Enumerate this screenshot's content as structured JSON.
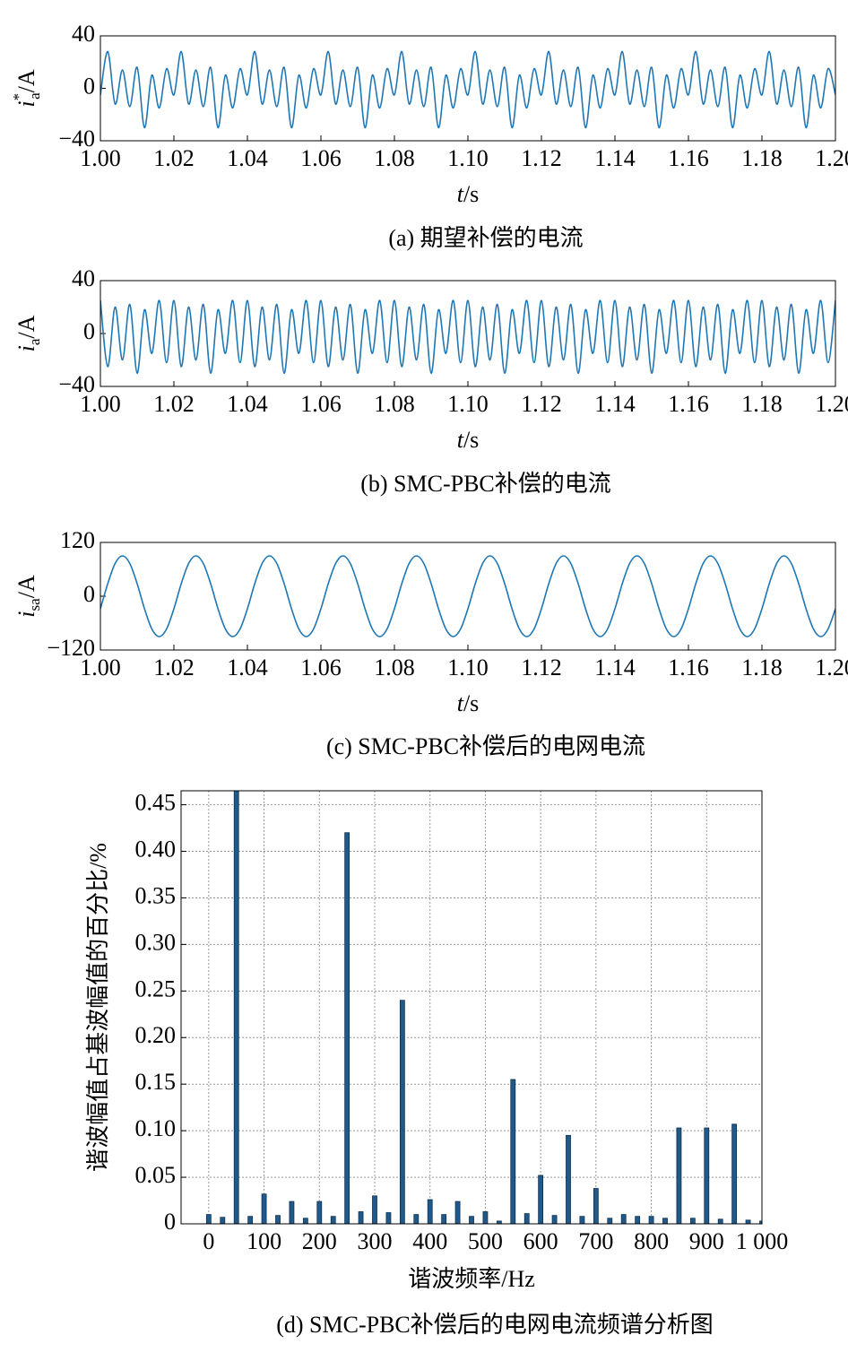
{
  "chart_data": [
    {
      "type": "line",
      "caption": "(a) 期望补偿的电流",
      "ylabel": {
        "symbol": "i",
        "superscript": "*",
        "subscript": "a",
        "unit": "/A"
      },
      "xlabel": {
        "symbol": "t",
        "unit": "/s"
      },
      "color": "#1f77b4",
      "xlim": [
        1,
        1.2
      ],
      "ylim": [
        -40,
        40
      ],
      "xticks": [
        {
          "value": 1,
          "label": "1.00"
        },
        1.02,
        1.04,
        1.06,
        1.08,
        {
          "value": 1.1,
          "label": "1.10"
        },
        1.12,
        1.14,
        1.16,
        1.18,
        {
          "value": 1.2,
          "label": "1.20"
        }
      ],
      "yticks": [
        {
          "value": -40,
          "label": "−40"
        },
        0,
        40
      ],
      "x": [
        1,
        1.002,
        1.004,
        1.006,
        1.008,
        1.01,
        1.012,
        1.014,
        1.016,
        1.018,
        1.02,
        1.022,
        1.024,
        1.026,
        1.028,
        1.03,
        1.032,
        1.034,
        1.036,
        1.038,
        1.04,
        1.042,
        1.044,
        1.046,
        1.048,
        1.05,
        1.052,
        1.054,
        1.056,
        1.058,
        1.06,
        1.062,
        1.064,
        1.066,
        1.068,
        1.07,
        1.072,
        1.074,
        1.076,
        1.078,
        1.08,
        1.082,
        1.084,
        1.086,
        1.088,
        1.09,
        1.092,
        1.094,
        1.096,
        1.098,
        1.1,
        1.102,
        1.104,
        1.106,
        1.108,
        1.11,
        1.112,
        1.114,
        1.116,
        1.118,
        1.12,
        1.122,
        1.124,
        1.126,
        1.128,
        1.13,
        1.132,
        1.134,
        1.136,
        1.138,
        1.14,
        1.142,
        1.144,
        1.146,
        1.148,
        1.15,
        1.152,
        1.154,
        1.156,
        1.158,
        1.16,
        1.162,
        1.164,
        1.166,
        1.168,
        1.17,
        1.172,
        1.174,
        1.176,
        1.178,
        1.18,
        1.182,
        1.184,
        1.186,
        1.188,
        1.19,
        1.192,
        1.194,
        1.196,
        1.198,
        1.2
      ],
      "values": [
        -5,
        28,
        -12,
        14,
        -14,
        16,
        -30,
        10,
        -15,
        15,
        -5,
        28,
        -12,
        14,
        -14,
        16,
        -30,
        10,
        -15,
        15,
        -5,
        28,
        -12,
        14,
        -14,
        16,
        -30,
        10,
        -15,
        15,
        -5,
        28,
        -12,
        14,
        -14,
        16,
        -30,
        10,
        -15,
        15,
        -5,
        28,
        -12,
        14,
        -14,
        16,
        -30,
        10,
        -15,
        15,
        -5,
        28,
        -12,
        14,
        -14,
        16,
        -30,
        10,
        -15,
        15,
        -5,
        28,
        -12,
        14,
        -14,
        16,
        -30,
        10,
        -15,
        15,
        -5,
        28,
        -12,
        14,
        -14,
        16,
        -30,
        10,
        -15,
        15,
        -5,
        28,
        -12,
        14,
        -14,
        16,
        -30,
        10,
        -15,
        15,
        -5,
        28,
        -12,
        14,
        -14,
        16,
        -30,
        10,
        -15,
        15,
        -5
      ]
    },
    {
      "type": "line",
      "caption": "(b) SMC-PBC补偿的电流",
      "ylabel": {
        "symbol": "i",
        "subscript": "a",
        "unit": "/A"
      },
      "xlabel": {
        "symbol": "t",
        "unit": "/s"
      },
      "color": "#1f77b4",
      "xlim": [
        1,
        1.2
      ],
      "ylim": [
        -40,
        40
      ],
      "xticks": [
        {
          "value": 1,
          "label": "1.00"
        },
        1.02,
        1.04,
        1.06,
        1.08,
        {
          "value": 1.1,
          "label": "1.10"
        },
        1.12,
        1.14,
        1.16,
        1.18,
        {
          "value": 1.2,
          "label": "1.20"
        }
      ],
      "yticks": [
        {
          "value": -40,
          "label": "−40"
        },
        0,
        40
      ],
      "x": [
        1,
        1.002,
        1.004,
        1.006,
        1.008,
        1.01,
        1.012,
        1.014,
        1.016,
        1.018,
        1.02,
        1.022,
        1.024,
        1.026,
        1.028,
        1.03,
        1.032,
        1.034,
        1.036,
        1.038,
        1.04,
        1.042,
        1.044,
        1.046,
        1.048,
        1.05,
        1.052,
        1.054,
        1.056,
        1.058,
        1.06,
        1.062,
        1.064,
        1.066,
        1.068,
        1.07,
        1.072,
        1.074,
        1.076,
        1.078,
        1.08,
        1.082,
        1.084,
        1.086,
        1.088,
        1.09,
        1.092,
        1.094,
        1.096,
        1.098,
        1.1,
        1.102,
        1.104,
        1.106,
        1.108,
        1.11,
        1.112,
        1.114,
        1.116,
        1.118,
        1.12,
        1.122,
        1.124,
        1.126,
        1.128,
        1.13,
        1.132,
        1.134,
        1.136,
        1.138,
        1.14,
        1.142,
        1.144,
        1.146,
        1.148,
        1.15,
        1.152,
        1.154,
        1.156,
        1.158,
        1.16,
        1.162,
        1.164,
        1.166,
        1.168,
        1.17,
        1.172,
        1.174,
        1.176,
        1.178,
        1.18,
        1.182,
        1.184,
        1.186,
        1.188,
        1.19,
        1.192,
        1.194,
        1.196,
        1.198,
        1.2
      ],
      "values": [
        25,
        -25,
        20,
        -20,
        22,
        -30,
        18,
        -15,
        25,
        -22,
        25,
        -25,
        20,
        -20,
        22,
        -30,
        18,
        -15,
        25,
        -22,
        25,
        -25,
        20,
        -20,
        22,
        -30,
        18,
        -15,
        25,
        -22,
        25,
        -25,
        20,
        -20,
        22,
        -30,
        18,
        -15,
        25,
        -22,
        25,
        -25,
        20,
        -20,
        22,
        -30,
        18,
        -15,
        25,
        -22,
        25,
        -25,
        20,
        -20,
        22,
        -30,
        18,
        -15,
        25,
        -22,
        25,
        -25,
        20,
        -20,
        22,
        -30,
        18,
        -15,
        25,
        -22,
        25,
        -25,
        20,
        -20,
        22,
        -30,
        18,
        -15,
        25,
        -22,
        25,
        -25,
        20,
        -20,
        22,
        -30,
        18,
        -15,
        25,
        -22,
        25,
        -25,
        20,
        -20,
        22,
        -30,
        18,
        -15,
        25,
        -22,
        25
      ]
    },
    {
      "type": "line",
      "caption": "(c) SMC-PBC补偿后的电网电流",
      "ylabel": {
        "symbol": "i",
        "subscript": "sa",
        "unit": "/A"
      },
      "xlabel": {
        "symbol": "t",
        "unit": "/s"
      },
      "color": "#1f77b4",
      "xlim": [
        1,
        1.2
      ],
      "ylim": [
        -120,
        120
      ],
      "xticks": [
        {
          "value": 1,
          "label": "1.00"
        },
        1.02,
        1.04,
        1.06,
        1.08,
        {
          "value": 1.1,
          "label": "1.10"
        },
        1.12,
        1.14,
        1.16,
        1.18,
        {
          "value": 1.2,
          "label": "1.20"
        }
      ],
      "yticks": [
        {
          "value": -120,
          "label": "−120"
        },
        0,
        120
      ],
      "x": [
        1,
        1.002,
        1.004,
        1.006,
        1.008,
        1.01,
        1.012,
        1.014,
        1.016,
        1.018,
        1.02,
        1.022,
        1.024,
        1.026,
        1.028,
        1.03,
        1.032,
        1.034,
        1.036,
        1.038,
        1.04,
        1.042,
        1.044,
        1.046,
        1.048,
        1.05,
        1.052,
        1.054,
        1.056,
        1.058,
        1.06,
        1.062,
        1.064,
        1.066,
        1.068,
        1.07,
        1.072,
        1.074,
        1.076,
        1.078,
        1.08,
        1.082,
        1.084,
        1.086,
        1.088,
        1.09,
        1.092,
        1.094,
        1.096,
        1.098,
        1.1,
        1.102,
        1.104,
        1.106,
        1.108,
        1.11,
        1.112,
        1.114,
        1.116,
        1.118,
        1.12,
        1.122,
        1.124,
        1.126,
        1.128,
        1.13,
        1.132,
        1.134,
        1.136,
        1.138,
        1.14,
        1.142,
        1.144,
        1.146,
        1.148,
        1.15,
        1.152,
        1.154,
        1.156,
        1.158,
        1.16,
        1.162,
        1.164,
        1.166,
        1.168,
        1.17,
        1.172,
        1.174,
        1.176,
        1.178,
        1.18,
        1.182,
        1.184,
        1.186,
        1.188,
        1.19,
        1.192,
        1.194,
        1.196,
        1.198,
        1.2
      ],
      "values": [
        -28,
        28,
        73,
        90,
        73,
        28,
        -28,
        -73,
        -90,
        -73,
        -28,
        28,
        73,
        90,
        73,
        28,
        -28,
        -73,
        -90,
        -73,
        -28,
        28,
        73,
        90,
        73,
        28,
        -28,
        -73,
        -90,
        -73,
        -28,
        28,
        73,
        90,
        73,
        28,
        -28,
        -73,
        -90,
        -73,
        -28,
        28,
        73,
        90,
        73,
        28,
        -28,
        -73,
        -90,
        -73,
        -28,
        28,
        73,
        90,
        73,
        28,
        -28,
        -73,
        -90,
        -73,
        -28,
        28,
        73,
        90,
        73,
        28,
        -28,
        -73,
        -90,
        -73,
        -28,
        28,
        73,
        90,
        73,
        28,
        -28,
        -73,
        -90,
        -73,
        -28,
        28,
        73,
        90,
        73,
        28,
        -28,
        -73,
        -90,
        -73,
        -28,
        28,
        73,
        90,
        73,
        28,
        -28,
        -73,
        -90,
        -73,
        -28
      ]
    },
    {
      "type": "bar",
      "caption": "(d) SMC-PBC补偿后的电网电流频谱分析图",
      "ylabel": "谐波幅值占基波幅值的百分比/%",
      "xlabel": "谐波频率/Hz",
      "color": "#1f5a8a",
      "grid": true,
      "xlim": [
        -50,
        1000
      ],
      "ylim": [
        0,
        0.465
      ],
      "xticks": [
        0,
        100,
        200,
        300,
        400,
        500,
        600,
        700,
        800,
        900,
        {
          "value": 1000,
          "label": "1 000"
        }
      ],
      "yticks": [
        0,
        0.05,
        {
          "value": 0.1,
          "label": "0.10"
        },
        0.15,
        {
          "value": 0.2,
          "label": "0.20"
        },
        0.25,
        {
          "value": 0.3,
          "label": "0.30"
        },
        0.35,
        {
          "value": 0.4,
          "label": "0.40"
        },
        0.45
      ],
      "x": [
        0,
        25,
        50,
        75,
        100,
        125,
        150,
        175,
        200,
        225,
        250,
        275,
        300,
        325,
        350,
        375,
        400,
        425,
        450,
        475,
        500,
        525,
        550,
        575,
        600,
        625,
        650,
        675,
        700,
        725,
        750,
        775,
        800,
        825,
        850,
        875,
        900,
        925,
        950,
        975,
        1000
      ],
      "values": [
        0.01,
        0.007,
        0.465,
        0.008,
        0.032,
        0.009,
        0.024,
        0.006,
        0.024,
        0.008,
        0.42,
        0.013,
        0.03,
        0.012,
        0.24,
        0.01,
        0.026,
        0.01,
        0.024,
        0.008,
        0.013,
        0.003,
        0.155,
        0.011,
        0.052,
        0.009,
        0.095,
        0.008,
        0.038,
        0.006,
        0.01,
        0.008,
        0.008,
        0.006,
        0.103,
        0.006,
        0.103,
        0.005,
        0.107,
        0.004,
        0.003
      ]
    }
  ]
}
